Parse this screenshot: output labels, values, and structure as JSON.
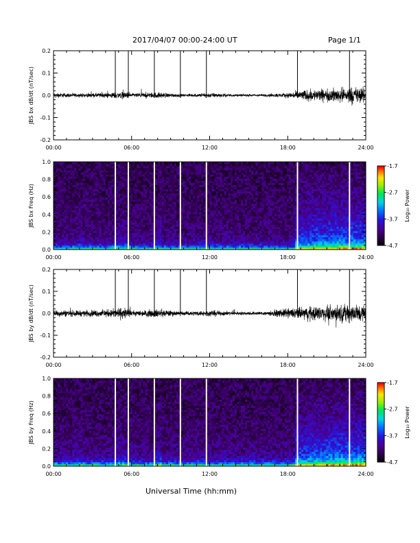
{
  "header": {
    "title": "2017/04/07  00:00-24:00 UT",
    "page": "Page 1/1"
  },
  "x_axis_title": "Universal Time (hh:mm)",
  "x_ticks": [
    "00:00",
    "06:00",
    "12:00",
    "18:00",
    "24:00"
  ],
  "colorbar": {
    "label": "Log₁₀ Power",
    "ticks": [
      "-1.7",
      "-2.7",
      "-3.7",
      "-4.7"
    ],
    "range": [
      -4.7,
      -1.7
    ],
    "colormap": "rainbow (black-purple-blue-cyan-green-yellow-orange-red)"
  },
  "chart_data": [
    {
      "type": "line",
      "ylabel": "JBS bx dB/dt (nT/sec)",
      "xlim_hours": [
        0,
        24
      ],
      "ylim": [
        -0.2,
        0.2
      ],
      "y_ticks": [
        "0.2",
        "0.1",
        "0.0",
        "-0.1",
        "-0.2"
      ],
      "marker_times_hours": [
        4.75,
        5.75,
        7.75,
        9.75,
        11.75,
        18.75,
        22.75
      ],
      "amplitude_envelope": {
        "x_hours": [
          0,
          2,
          4,
          5.5,
          6,
          8,
          10,
          12,
          14,
          16,
          17,
          18,
          19,
          20,
          21,
          22,
          23,
          24
        ],
        "peak_abs": [
          0.02,
          0.015,
          0.02,
          0.03,
          0.015,
          0.025,
          0.01,
          0.02,
          0.01,
          0.01,
          0.015,
          0.02,
          0.04,
          0.05,
          0.05,
          0.06,
          0.07,
          0.06
        ]
      }
    },
    {
      "type": "heatmap",
      "ylabel": "JBS bx Freq (Hz)",
      "xlim_hours": [
        0,
        24
      ],
      "ylim": [
        0.0,
        1.0
      ],
      "y_ticks": [
        "1.0",
        "0.8",
        "0.6",
        "0.4",
        "0.2",
        "0.0"
      ],
      "gap_times_hours": [
        4.75,
        5.75,
        7.75,
        9.75,
        11.75,
        18.75,
        22.75
      ]
    },
    {
      "type": "line",
      "ylabel": "JBS by dB/dt (nT/sec)",
      "xlim_hours": [
        0,
        24
      ],
      "ylim": [
        -0.2,
        0.2
      ],
      "y_ticks": [
        "0.2",
        "0.1",
        "0.0",
        "-0.1",
        "-0.2"
      ],
      "marker_times_hours": [
        4.75,
        5.75,
        7.75,
        9.75,
        11.75,
        18.75,
        22.75
      ],
      "amplitude_envelope": {
        "x_hours": [
          0,
          2,
          4,
          5.5,
          6,
          8,
          10,
          12,
          14,
          16,
          17,
          18,
          19,
          20,
          21,
          22,
          23,
          24
        ],
        "peak_abs": [
          0.03,
          0.025,
          0.03,
          0.05,
          0.02,
          0.035,
          0.015,
          0.025,
          0.015,
          0.015,
          0.025,
          0.04,
          0.05,
          0.06,
          0.06,
          0.07,
          0.08,
          0.07
        ]
      }
    },
    {
      "type": "heatmap",
      "ylabel": "JBS by Freq (Hz)",
      "xlim_hours": [
        0,
        24
      ],
      "ylim": [
        0.0,
        1.0
      ],
      "y_ticks": [
        "1.0",
        "0.8",
        "0.6",
        "0.4",
        "0.2",
        "0.0"
      ],
      "gap_times_hours": [
        4.75,
        5.75,
        7.75,
        9.75,
        11.75,
        18.75,
        22.75
      ]
    }
  ]
}
